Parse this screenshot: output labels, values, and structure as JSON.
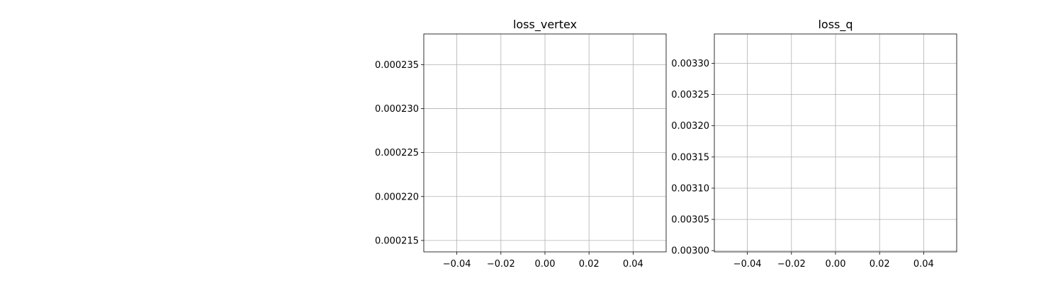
{
  "chart_data": [
    {
      "type": "line",
      "title": "loss_vertex",
      "xlabel": "",
      "ylabel": "",
      "xlim": [
        -0.055,
        0.055
      ],
      "ylim": [
        0.0002137,
        0.0002385
      ],
      "x_ticks": [
        -0.04,
        -0.02,
        0.0,
        0.02,
        0.04
      ],
      "x_tick_labels": [
        "−0.04",
        "−0.02",
        "0.00",
        "0.02",
        "0.04"
      ],
      "y_ticks": [
        0.000215,
        0.00022,
        0.000225,
        0.00023,
        0.000235
      ],
      "y_tick_labels": [
        "0.000215",
        "0.000220",
        "0.000225",
        "0.000230",
        "0.000235"
      ],
      "grid": true,
      "series": [
        {
          "x": [],
          "y": []
        }
      ]
    },
    {
      "type": "line",
      "title": "loss_q",
      "xlabel": "",
      "ylabel": "",
      "xlim": [
        -0.055,
        0.055
      ],
      "ylim": [
        0.002998,
        0.003347
      ],
      "x_ticks": [
        -0.04,
        -0.02,
        0.0,
        0.02,
        0.04
      ],
      "x_tick_labels": [
        "−0.04",
        "−0.02",
        "0.00",
        "0.02",
        "0.04"
      ],
      "y_ticks": [
        0.003,
        0.00305,
        0.0031,
        0.00315,
        0.0032,
        0.00325,
        0.0033
      ],
      "y_tick_labels": [
        "0.00300",
        "0.00305",
        "0.00310",
        "0.00315",
        "0.00320",
        "0.00325",
        "0.00330"
      ],
      "grid": true,
      "series": [
        {
          "x": [],
          "y": []
        }
      ]
    }
  ],
  "colors": {
    "grid": "#b0b0b0",
    "axes": "#000000",
    "background": "#ffffff"
  }
}
